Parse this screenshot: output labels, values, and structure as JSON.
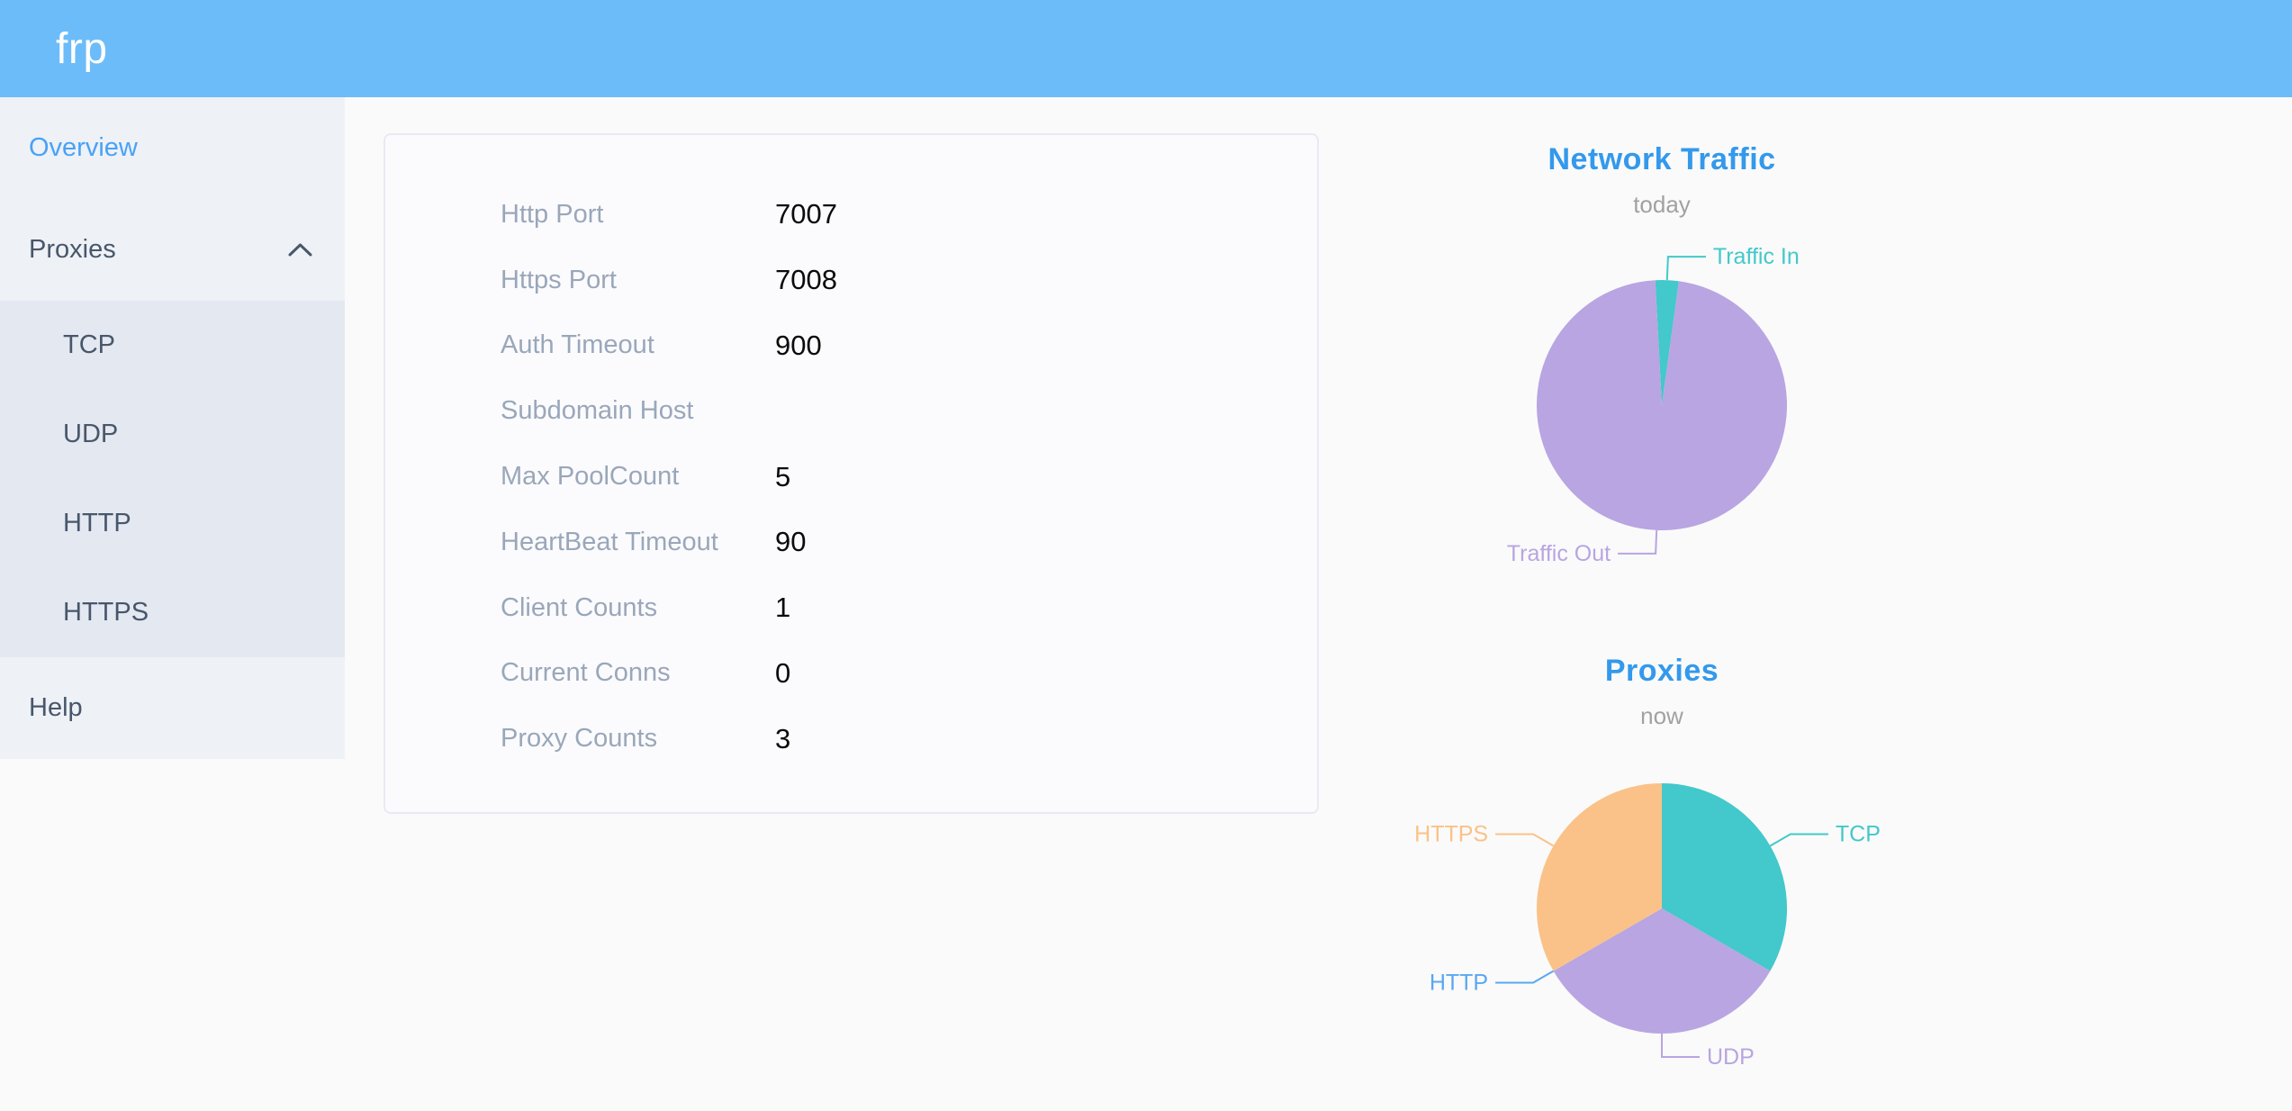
{
  "header": {
    "logo": "frp",
    "color": "#6cbcfa"
  },
  "sidebar": {
    "items": [
      {
        "label": "Overview",
        "active": true
      },
      {
        "label": "Proxies",
        "expanded": true,
        "children": [
          {
            "label": "TCP"
          },
          {
            "label": "UDP"
          },
          {
            "label": "HTTP"
          },
          {
            "label": "HTTPS"
          }
        ]
      },
      {
        "label": "Help"
      }
    ],
    "active_color": "#48a2f6",
    "text_color": "#48576a"
  },
  "server_info": {
    "rows": [
      {
        "label": "Http Port",
        "value": "7007"
      },
      {
        "label": "Https Port",
        "value": "7008"
      },
      {
        "label": "Auth Timeout",
        "value": "900"
      },
      {
        "label": "Subdomain Host",
        "value": ""
      },
      {
        "label": "Max PoolCount",
        "value": "5"
      },
      {
        "label": "HeartBeat Timeout",
        "value": "90"
      },
      {
        "label": "Client Counts",
        "value": "1"
      },
      {
        "label": "Current Conns",
        "value": "0"
      },
      {
        "label": "Proxy Counts",
        "value": "3"
      }
    ]
  },
  "chart_data": [
    {
      "type": "pie",
      "title": "Network Traffic",
      "subtitle": "today",
      "legend_position": "none",
      "start_angle": -3,
      "slices": [
        {
          "label": "Traffic In",
          "value": 3,
          "color": "#43c8cb"
        },
        {
          "label": "Traffic Out",
          "value": 97,
          "color": "#b8a5e2"
        }
      ]
    },
    {
      "type": "pie",
      "title": "Proxies",
      "subtitle": "now",
      "legend_position": "none",
      "start_angle": 0,
      "slices": [
        {
          "label": "TCP",
          "value": 1,
          "color": "#43c8cb"
        },
        {
          "label": "UDP",
          "value": 1,
          "color": "#b8a5e2"
        },
        {
          "label": "HTTP",
          "value": 0,
          "color": "#59a8f1"
        },
        {
          "label": "HTTPS",
          "value": 1,
          "color": "#fac288"
        }
      ]
    }
  ]
}
